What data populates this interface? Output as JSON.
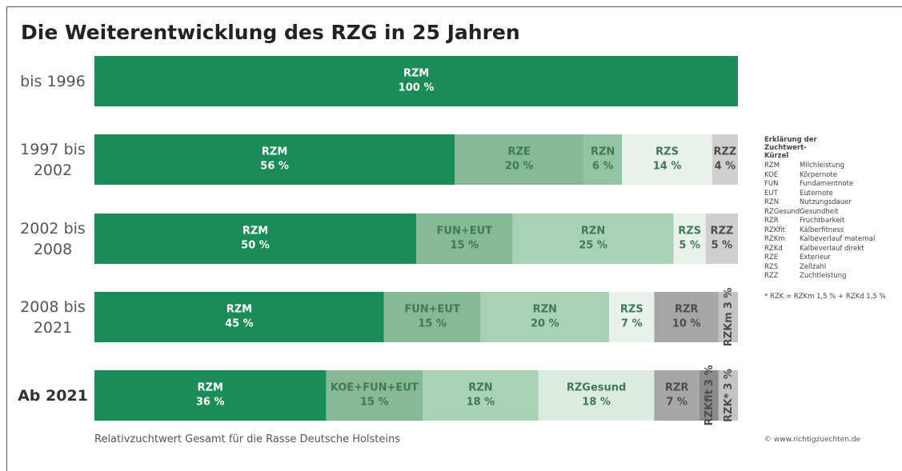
{
  "chart_data": {
    "type": "stacked-bar",
    "title": "Die Weiterentwicklung des RZG in 25 Jahren",
    "caption": "Relativzuchtwert Gesamt für die Rasse Deutsche Holsteins",
    "xlim": [
      0,
      100
    ],
    "rows": [
      {
        "label": "bis 1996",
        "segments": [
          {
            "name": "RZM",
            "value": 100,
            "value_label": "100 %",
            "color": "#1b8c57"
          }
        ]
      },
      {
        "label": "1997 bis 2002",
        "segments": [
          {
            "name": "RZM",
            "value": 56,
            "value_label": "56 %",
            "color": "#1b8c57"
          },
          {
            "name": "RZE",
            "value": 20,
            "value_label": "20 %",
            "color": "#86b996"
          },
          {
            "name": "RZN",
            "value": 6,
            "value_label": "6 %",
            "color": "#94c4a2"
          },
          {
            "name": "RZS",
            "value": 14,
            "value_label": "14 %",
            "color": "#e8f1ea"
          },
          {
            "name": "RZZ",
            "value": 4,
            "value_label": "4 %",
            "color": "#cfcfcf"
          }
        ]
      },
      {
        "label": "2002 bis 2008",
        "segments": [
          {
            "name": "RZM",
            "value": 50,
            "value_label": "50 %",
            "color": "#1b8c57"
          },
          {
            "name": "FUN+EUT",
            "value": 15,
            "value_label": "15 %",
            "color": "#86b996"
          },
          {
            "name": "RZN",
            "value": 25,
            "value_label": "25 %",
            "color": "#a8d2b3"
          },
          {
            "name": "RZS",
            "value": 5,
            "value_label": "5 %",
            "color": "#e8f1ea"
          },
          {
            "name": "RZZ",
            "value": 5,
            "value_label": "5 %",
            "color": "#cfcfcf"
          }
        ]
      },
      {
        "label": "2008 bis 2021",
        "segments": [
          {
            "name": "RZM",
            "value": 45,
            "value_label": "45 %",
            "color": "#1b8c57"
          },
          {
            "name": "FUN+EUT",
            "value": 15,
            "value_label": "15 %",
            "color": "#86b996"
          },
          {
            "name": "RZN",
            "value": 20,
            "value_label": "20 %",
            "color": "#a8d2b3"
          },
          {
            "name": "RZS",
            "value": 7,
            "value_label": "7 %",
            "color": "#e8f1ea"
          },
          {
            "name": "RZR",
            "value": 10,
            "value_label": "10 %",
            "color": "#a6a6a6"
          },
          {
            "name": "RZKm",
            "value": 3,
            "value_label": "3 %",
            "color": "#c4c4c4"
          }
        ]
      },
      {
        "label": "Ab 2021",
        "segments": [
          {
            "name": "RZM",
            "value": 36,
            "value_label": "36 %",
            "color": "#1b8c57"
          },
          {
            "name": "KOE+FUN+EUT",
            "value": 15,
            "value_label": "15 %",
            "color": "#86b996"
          },
          {
            "name": "RZN",
            "value": 18,
            "value_label": "18 %",
            "color": "#a8d2b3"
          },
          {
            "name": "RZGesund",
            "value": 18,
            "value_label": "18 %",
            "color": "#dcebe0"
          },
          {
            "name": "RZR",
            "value": 7,
            "value_label": "7 %",
            "color": "#a6a6a6"
          },
          {
            "name": "RZKfit",
            "value": 3,
            "value_label": "3 %",
            "color": "#8c8c8c"
          },
          {
            "name": "RZK*",
            "value": 3,
            "value_label": "3 %",
            "color": "#c4c4c4"
          }
        ]
      }
    ],
    "legend": {
      "title": "Erklärung der Zuchtwert-Kürzel",
      "entries": [
        {
          "code": "RZM",
          "meaning": "Milchleistung"
        },
        {
          "code": "KOE",
          "meaning": "Körpernote"
        },
        {
          "code": "FUN",
          "meaning": "Fundamentnote"
        },
        {
          "code": "EUT",
          "meaning": "Euternote"
        },
        {
          "code": "RZN",
          "meaning": "Nutzungsdauer"
        },
        {
          "code": "RZGesund",
          "meaning": "Gesundheit"
        },
        {
          "code": "RZR",
          "meaning": "Fruchtbarkeit"
        },
        {
          "code": "RZKfit",
          "meaning": "Kälberfitness"
        },
        {
          "code": "RZKm",
          "meaning": "Kalbeverlauf maternal"
        },
        {
          "code": "RZKd",
          "meaning": "Kalbeverlauf direkt"
        },
        {
          "code": "RZE",
          "meaning": "Exterieur"
        },
        {
          "code": "RZS",
          "meaning": "Zellzahl"
        },
        {
          "code": "RZZ",
          "meaning": "Zuchtleistung"
        }
      ],
      "footnote": "* RZK = RZKm 1,5 % + RZKd 1,5 %"
    },
    "source": "© www.richtigzuechten.de"
  }
}
